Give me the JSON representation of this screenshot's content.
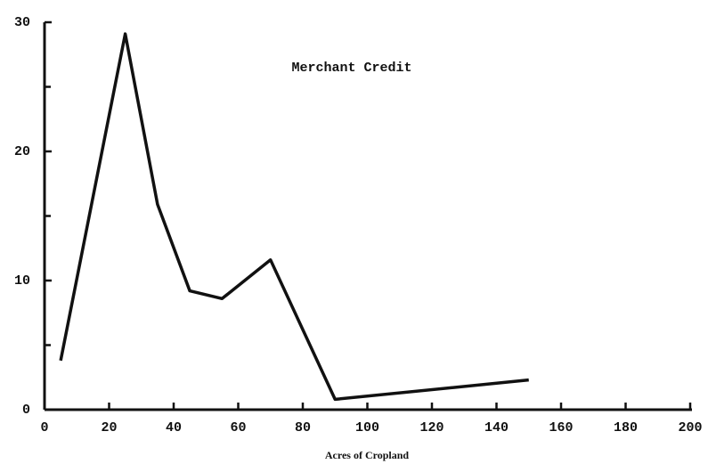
{
  "chart_data": {
    "type": "line",
    "title": "Merchant Credit",
    "x_label": "Acres of Cropland",
    "x": [
      5,
      25,
      35,
      45,
      55,
      70,
      90,
      150
    ],
    "series": [
      {
        "name": null,
        "color": "#111111",
        "values": [
          3.8,
          29.1,
          15.9,
          9.2,
          8.6,
          11.6,
          0.8,
          2.3
        ]
      }
    ],
    "xlim": [
      0,
      200
    ],
    "xticks": [
      0,
      20,
      40,
      60,
      80,
      100,
      120,
      140,
      160,
      180,
      200
    ],
    "ylim": [
      0,
      30
    ],
    "yticks": [
      0,
      10,
      20,
      30
    ],
    "yminor_ticks": [
      5,
      15,
      25
    ],
    "grid": false
  }
}
